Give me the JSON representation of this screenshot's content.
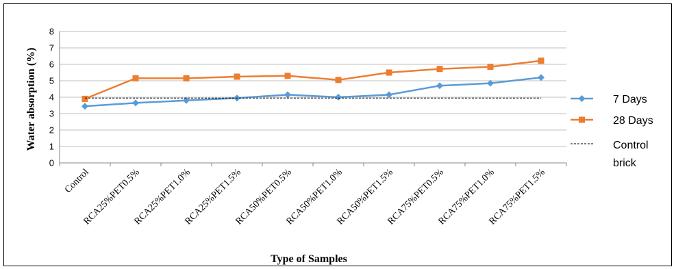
{
  "chart_data": {
    "type": "line",
    "title": "",
    "xlabel": "Type of Samples",
    "ylabel": "Water absorption (%)",
    "ylim": [
      0,
      8
    ],
    "yticks": [
      "0",
      "1",
      "2",
      "3",
      "4",
      "5",
      "6",
      "7",
      "8"
    ],
    "grid": true,
    "legend_position": "right",
    "categories": [
      "Control",
      "RCA25%PET0.5%",
      "RCA25%PET1.0%",
      "RCA25%PET1.5%",
      "RCA50%PET0.5%",
      "RCA50%PET1.0%",
      "RCA50%PET1.5%",
      "RCA75%PET0.5%",
      "RCA75%PET1.0%",
      "RCA75%PET1.5%"
    ],
    "series": [
      {
        "name": "7 Days",
        "color": "#5B9BD5",
        "marker": "diamond",
        "values": [
          3.45,
          3.65,
          3.8,
          3.95,
          4.15,
          4.0,
          4.15,
          4.7,
          4.85,
          5.2
        ]
      },
      {
        "name": "28 Days",
        "color": "#ED7D31",
        "marker": "square",
        "values": [
          3.9,
          5.15,
          5.15,
          5.25,
          5.3,
          5.05,
          5.5,
          5.72,
          5.85,
          6.22
        ]
      },
      {
        "name_lines": [
          "Control",
          "brick"
        ],
        "color": "#000000",
        "style": "dashed",
        "values": [
          3.95,
          3.95,
          3.95,
          3.95,
          3.95,
          3.95,
          3.95,
          3.95,
          3.95,
          3.95
        ]
      }
    ]
  }
}
